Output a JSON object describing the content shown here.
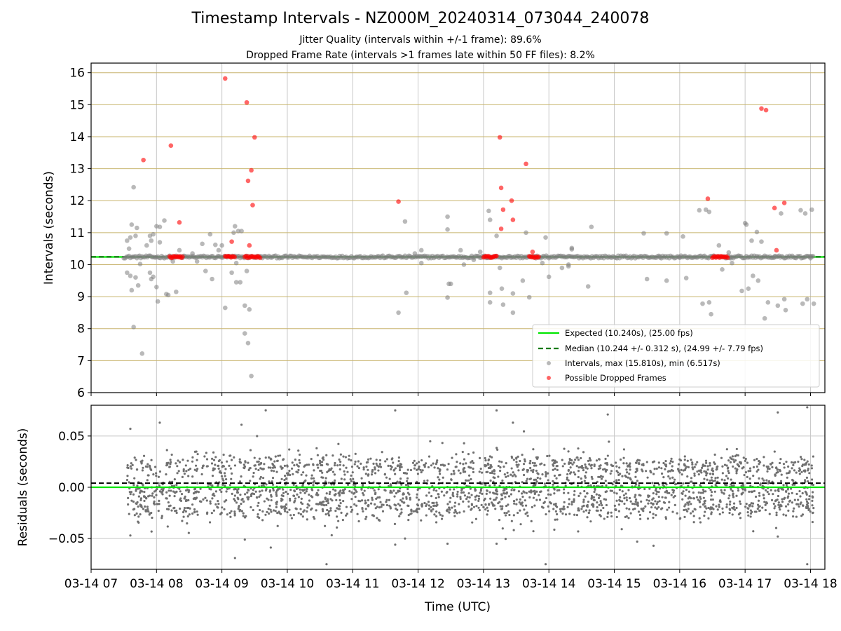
{
  "figure": {
    "title": "Timestamp Intervals - NZ000M_20240314_073044_240078",
    "subtitle_1": "Jitter Quality (intervals within +/-1 frame): 89.6%",
    "subtitle_2": "Dropped Frame Rate (intervals >1 frames late within 50 FF files): 8.2%",
    "xlabel": "Time (UTC)"
  },
  "colors": {
    "expected": "#00e600",
    "median": "#007a00",
    "intervals": "#808080",
    "dropped": "#ff0000",
    "hgrid_top": "#c8b46e",
    "grid": "#c8c8c8",
    "residuals": "#707070"
  },
  "chart_data": [
    {
      "type": "scatter",
      "ylabel": "Intervals (seconds)",
      "ylim": [
        6,
        16.3
      ],
      "xlim_hours": [
        7.0,
        18.22
      ],
      "yticks": [
        "6",
        "7",
        "8",
        "9",
        "10",
        "11",
        "12",
        "13",
        "14",
        "15",
        "16"
      ],
      "grid": "on",
      "legend_position": "lower-right",
      "legend": [
        "Expected (10.240s), (25.00 fps)",
        "Median (10.244 +/- 0.312 s), (24.99 +/- 7.79 fps)",
        "Intervals, max (15.810s), min (6.517s)",
        "Possible Dropped Frames"
      ],
      "expected_value": 10.24,
      "median_value": 10.244,
      "baseline_time_range_hours": [
        7.5,
        18.05
      ],
      "baseline_value": 10.24,
      "dropped_clusters": [
        {
          "x_range_hours": [
            8.2,
            8.4
          ],
          "y": 10.24
        },
        {
          "x_range_hours": [
            9.05,
            9.2
          ],
          "y": 10.24
        },
        {
          "x_range_hours": [
            9.35,
            9.6
          ],
          "y": 10.24
        },
        {
          "x_range_hours": [
            13.0,
            13.2
          ],
          "y": 10.24
        },
        {
          "x_range_hours": [
            13.7,
            13.85
          ],
          "y": 10.24
        },
        {
          "x_range_hours": [
            16.5,
            16.75
          ],
          "y": 10.24
        }
      ],
      "intervals_outliers": [
        [
          7.55,
          10.75
        ],
        [
          7.55,
          9.75
        ],
        [
          7.58,
          10.5
        ],
        [
          7.6,
          10.85
        ],
        [
          7.6,
          9.65
        ],
        [
          7.62,
          11.25
        ],
        [
          7.62,
          9.2
        ],
        [
          7.65,
          12.42
        ],
        [
          7.65,
          8.05
        ],
        [
          7.68,
          10.9
        ],
        [
          7.68,
          9.6
        ],
        [
          7.7,
          11.15
        ],
        [
          7.72,
          9.35
        ],
        [
          7.75,
          10.02
        ],
        [
          7.78,
          7.22
        ],
        [
          7.85,
          10.6
        ],
        [
          7.9,
          10.9
        ],
        [
          7.9,
          9.75
        ],
        [
          7.92,
          10.75
        ],
        [
          7.92,
          9.55
        ],
        [
          7.95,
          10.95
        ],
        [
          7.95,
          9.62
        ],
        [
          8.0,
          11.2
        ],
        [
          8.0,
          9.3
        ],
        [
          8.02,
          8.85
        ],
        [
          8.05,
          10.7
        ],
        [
          8.05,
          11.18
        ],
        [
          8.12,
          11.38
        ],
        [
          8.15,
          9.08
        ],
        [
          8.18,
          9.05
        ],
        [
          8.25,
          10.1
        ],
        [
          8.3,
          9.15
        ],
        [
          8.35,
          10.45
        ],
        [
          8.4,
          10.25
        ],
        [
          8.55,
          10.35
        ],
        [
          8.62,
          10.1
        ],
        [
          8.7,
          10.65
        ],
        [
          8.75,
          9.8
        ],
        [
          8.82,
          10.95
        ],
        [
          8.85,
          9.55
        ],
        [
          8.9,
          10.62
        ],
        [
          8.95,
          10.45
        ],
        [
          9.0,
          10.6
        ],
        [
          9.05,
          8.65
        ],
        [
          9.15,
          9.75
        ],
        [
          9.18,
          11.0
        ],
        [
          9.2,
          11.2
        ],
        [
          9.22,
          10.05
        ],
        [
          9.22,
          9.45
        ],
        [
          9.25,
          11.05
        ],
        [
          9.28,
          9.45
        ],
        [
          9.3,
          11.05
        ],
        [
          9.35,
          8.72
        ],
        [
          9.35,
          7.85
        ],
        [
          9.38,
          9.8
        ],
        [
          9.4,
          7.55
        ],
        [
          9.42,
          8.6
        ],
        [
          9.45,
          6.52
        ],
        [
          11.7,
          8.5
        ],
        [
          11.8,
          11.35
        ],
        [
          11.82,
          9.12
        ],
        [
          11.95,
          10.35
        ],
        [
          12.05,
          10.45
        ],
        [
          12.05,
          10.05
        ],
        [
          12.45,
          11.5
        ],
        [
          12.45,
          11.1
        ],
        [
          12.45,
          8.97
        ],
        [
          12.47,
          9.4
        ],
        [
          12.5,
          9.4
        ],
        [
          12.65,
          10.45
        ],
        [
          12.7,
          10.0
        ],
        [
          12.85,
          10.15
        ],
        [
          12.95,
          10.4
        ],
        [
          13.08,
          11.68
        ],
        [
          13.1,
          11.4
        ],
        [
          13.1,
          9.12
        ],
        [
          13.1,
          8.82
        ],
        [
          13.2,
          10.9
        ],
        [
          13.25,
          9.9
        ],
        [
          13.28,
          9.25
        ],
        [
          13.3,
          8.75
        ],
        [
          13.45,
          9.1
        ],
        [
          13.45,
          8.5
        ],
        [
          13.6,
          9.5
        ],
        [
          13.65,
          11.0
        ],
        [
          13.7,
          8.98
        ],
        [
          13.8,
          10.2
        ],
        [
          13.9,
          10.05
        ],
        [
          13.95,
          10.85
        ],
        [
          14.0,
          9.62
        ],
        [
          14.2,
          9.9
        ],
        [
          14.3,
          10.0
        ],
        [
          14.3,
          9.95
        ],
        [
          14.35,
          10.52
        ],
        [
          14.35,
          10.48
        ],
        [
          14.6,
          9.32
        ],
        [
          14.65,
          11.18
        ],
        [
          15.45,
          10.98
        ],
        [
          15.5,
          9.55
        ],
        [
          15.7,
          10.22
        ],
        [
          15.8,
          10.98
        ],
        [
          15.8,
          9.5
        ],
        [
          16.0,
          10.22
        ],
        [
          16.05,
          10.88
        ],
        [
          16.1,
          9.58
        ],
        [
          16.3,
          11.7
        ],
        [
          16.35,
          8.78
        ],
        [
          16.4,
          11.72
        ],
        [
          16.45,
          11.65
        ],
        [
          16.45,
          8.82
        ],
        [
          16.48,
          8.45
        ],
        [
          16.6,
          10.6
        ],
        [
          16.65,
          9.85
        ],
        [
          16.75,
          10.38
        ],
        [
          16.78,
          10.2
        ],
        [
          16.8,
          10.05
        ],
        [
          16.95,
          9.18
        ],
        [
          17.0,
          11.3
        ],
        [
          17.02,
          11.25
        ],
        [
          17.05,
          9.25
        ],
        [
          17.1,
          10.75
        ],
        [
          17.12,
          9.65
        ],
        [
          17.18,
          11.02
        ],
        [
          17.2,
          9.5
        ],
        [
          17.25,
          10.72
        ],
        [
          17.3,
          8.32
        ],
        [
          17.35,
          8.82
        ],
        [
          17.45,
          10.25
        ],
        [
          17.5,
          8.72
        ],
        [
          17.55,
          11.6
        ],
        [
          17.6,
          8.92
        ],
        [
          17.62,
          8.58
        ],
        [
          17.85,
          11.7
        ],
        [
          17.88,
          8.78
        ],
        [
          17.92,
          11.6
        ],
        [
          17.95,
          8.92
        ],
        [
          18.0,
          10.2
        ],
        [
          18.02,
          11.72
        ],
        [
          18.05,
          8.78
        ]
      ],
      "dropped_outliers": [
        [
          7.8,
          13.27
        ],
        [
          8.22,
          13.72
        ],
        [
          8.35,
          11.32
        ],
        [
          9.05,
          15.82
        ],
        [
          9.15,
          10.72
        ],
        [
          9.38,
          15.07
        ],
        [
          9.4,
          12.62
        ],
        [
          9.42,
          10.6
        ],
        [
          9.45,
          12.95
        ],
        [
          9.47,
          11.86
        ],
        [
          9.5,
          13.98
        ],
        [
          11.7,
          11.97
        ],
        [
          13.25,
          13.98
        ],
        [
          13.27,
          12.4
        ],
        [
          13.27,
          11.12
        ],
        [
          13.3,
          11.72
        ],
        [
          13.43,
          12.0
        ],
        [
          13.45,
          11.4
        ],
        [
          13.65,
          13.15
        ],
        [
          13.75,
          10.4
        ],
        [
          16.43,
          12.06
        ],
        [
          17.25,
          14.88
        ],
        [
          17.32,
          14.83
        ],
        [
          17.45,
          11.77
        ],
        [
          17.48,
          10.45
        ],
        [
          17.6,
          11.93
        ]
      ]
    },
    {
      "type": "scatter",
      "ylabel": "Residuals (seconds)",
      "ylim": [
        -0.08,
        0.08
      ],
      "yticks": [
        "−0.05",
        "0.00",
        "0.05"
      ],
      "xticks": [
        "03-14 07",
        "03-14 08",
        "03-14 09",
        "03-14 10",
        "03-14 11",
        "03-14 12",
        "03-14 13",
        "03-14 14",
        "03-14 15",
        "03-14 16",
        "03-14 17",
        "03-14 18"
      ],
      "grid": "on",
      "expected_value": 0.0,
      "median_value": 0.004,
      "time_range_hours": [
        7.55,
        18.05
      ],
      "bands": [
        0.02,
        -0.002,
        -0.02
      ],
      "spread_std": 0.0065,
      "points_count": 2600,
      "extreme_points": [
        [
          7.6,
          0.057
        ],
        [
          7.6,
          -0.047
        ],
        [
          8.05,
          0.063
        ],
        [
          9.3,
          0.061
        ],
        [
          9.35,
          -0.051
        ],
        [
          9.2,
          -0.069
        ],
        [
          10.6,
          -0.075
        ],
        [
          11.65,
          0.075
        ],
        [
          11.65,
          -0.056
        ],
        [
          11.8,
          -0.05
        ],
        [
          12.45,
          -0.055
        ],
        [
          13.2,
          0.075
        ],
        [
          13.2,
          -0.055
        ],
        [
          13.45,
          0.063
        ],
        [
          13.95,
          -0.075
        ],
        [
          14.9,
          0.071
        ],
        [
          15.35,
          -0.053
        ],
        [
          15.6,
          -0.057
        ],
        [
          17.5,
          0.073
        ],
        [
          17.5,
          -0.048
        ],
        [
          17.95,
          0.078
        ],
        [
          17.95,
          -0.075
        ]
      ]
    }
  ]
}
